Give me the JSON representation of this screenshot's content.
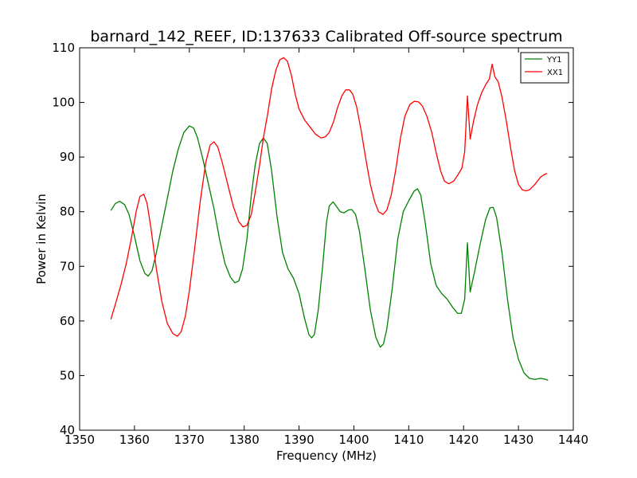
{
  "chart_data": {
    "type": "line",
    "title": "barnard_142_REEF, ID:137633 Calibrated Off-source spectrum",
    "xlabel": "Frequency (MHz)",
    "ylabel": "Power in Kelvin",
    "xlim": [
      1350,
      1440
    ],
    "ylim": [
      40,
      110
    ],
    "xticks": [
      1350,
      1360,
      1370,
      1380,
      1390,
      1400,
      1410,
      1420,
      1430,
      1440
    ],
    "yticks": [
      40,
      50,
      60,
      70,
      80,
      90,
      100,
      110
    ],
    "grid": false,
    "legend_position": "top-right",
    "series": [
      {
        "name": "YY1",
        "color": "#008000",
        "points": [
          [
            1355.7,
            80.2
          ],
          [
            1356.5,
            81.5
          ],
          [
            1357.3,
            81.9
          ],
          [
            1358.2,
            81.3
          ],
          [
            1359.0,
            79.5
          ],
          [
            1360.0,
            75.5
          ],
          [
            1361.0,
            71.0
          ],
          [
            1361.9,
            68.7
          ],
          [
            1362.5,
            68.2
          ],
          [
            1363.2,
            69.2
          ],
          [
            1364.0,
            72.5
          ],
          [
            1365.0,
            77.5
          ],
          [
            1366.0,
            82.5
          ],
          [
            1367.0,
            87.5
          ],
          [
            1368.0,
            91.5
          ],
          [
            1369.0,
            94.5
          ],
          [
            1370.0,
            95.7
          ],
          [
            1370.8,
            95.3
          ],
          [
            1371.5,
            93.5
          ],
          [
            1372.5,
            89.5
          ],
          [
            1373.5,
            85.0
          ],
          [
            1374.5,
            80.5
          ],
          [
            1375.5,
            75.0
          ],
          [
            1376.5,
            70.5
          ],
          [
            1377.5,
            68.0
          ],
          [
            1378.3,
            67.0
          ],
          [
            1379.0,
            67.3
          ],
          [
            1379.7,
            69.5
          ],
          [
            1380.5,
            75.0
          ],
          [
            1381.3,
            83.0
          ],
          [
            1382.0,
            88.5
          ],
          [
            1382.8,
            92.5
          ],
          [
            1383.5,
            93.5
          ],
          [
            1384.2,
            92.5
          ],
          [
            1385.0,
            87.5
          ],
          [
            1386.0,
            79.0
          ],
          [
            1387.0,
            72.5
          ],
          [
            1388.0,
            69.5
          ],
          [
            1389.0,
            67.8
          ],
          [
            1390.0,
            65.0
          ],
          [
            1391.0,
            60.5
          ],
          [
            1391.8,
            57.5
          ],
          [
            1392.3,
            56.9
          ],
          [
            1392.8,
            57.5
          ],
          [
            1393.5,
            62.0
          ],
          [
            1394.3,
            70.0
          ],
          [
            1395.0,
            78.0
          ],
          [
            1395.5,
            81.0
          ],
          [
            1396.2,
            81.8
          ],
          [
            1396.8,
            81.0
          ],
          [
            1397.5,
            80.0
          ],
          [
            1398.2,
            79.8
          ],
          [
            1399.0,
            80.3
          ],
          [
            1399.6,
            80.4
          ],
          [
            1400.3,
            79.5
          ],
          [
            1401.0,
            76.5
          ],
          [
            1402.0,
            69.5
          ],
          [
            1403.0,
            62.0
          ],
          [
            1404.0,
            57.0
          ],
          [
            1404.8,
            55.2
          ],
          [
            1405.4,
            55.8
          ],
          [
            1406.0,
            58.5
          ],
          [
            1407.0,
            66.0
          ],
          [
            1408.0,
            75.0
          ],
          [
            1409.0,
            80.0
          ],
          [
            1410.0,
            82.0
          ],
          [
            1411.0,
            83.8
          ],
          [
            1411.6,
            84.2
          ],
          [
            1412.2,
            83.0
          ],
          [
            1413.0,
            78.0
          ],
          [
            1414.0,
            70.5
          ],
          [
            1415.0,
            66.5
          ],
          [
            1416.0,
            65.0
          ],
          [
            1417.0,
            64.0
          ],
          [
            1418.0,
            62.5
          ],
          [
            1418.9,
            61.4
          ],
          [
            1419.6,
            61.4
          ],
          [
            1420.2,
            64.0
          ],
          [
            1420.7,
            74.3
          ],
          [
            1421.2,
            65.3
          ],
          [
            1422.0,
            69.0
          ],
          [
            1423.0,
            74.0
          ],
          [
            1424.0,
            78.5
          ],
          [
            1424.8,
            80.7
          ],
          [
            1425.4,
            80.8
          ],
          [
            1426.0,
            79.0
          ],
          [
            1427.0,
            72.5
          ],
          [
            1428.0,
            64.0
          ],
          [
            1429.0,
            57.0
          ],
          [
            1430.0,
            53.0
          ],
          [
            1431.0,
            50.5
          ],
          [
            1432.0,
            49.5
          ],
          [
            1433.0,
            49.3
          ],
          [
            1434.0,
            49.5
          ],
          [
            1435.0,
            49.3
          ],
          [
            1435.4,
            49.1
          ]
        ]
      },
      {
        "name": "XX1",
        "color": "#ff0000",
        "points": [
          [
            1355.7,
            60.3
          ],
          [
            1356.5,
            63.0
          ],
          [
            1357.5,
            66.5
          ],
          [
            1358.5,
            70.5
          ],
          [
            1359.5,
            75.5
          ],
          [
            1360.3,
            80.0
          ],
          [
            1361.0,
            82.8
          ],
          [
            1361.7,
            83.2
          ],
          [
            1362.3,
            81.5
          ],
          [
            1363.0,
            77.0
          ],
          [
            1364.0,
            69.5
          ],
          [
            1365.0,
            63.5
          ],
          [
            1366.0,
            59.5
          ],
          [
            1367.0,
            57.7
          ],
          [
            1367.8,
            57.2
          ],
          [
            1368.5,
            58.0
          ],
          [
            1369.3,
            61.0
          ],
          [
            1370.0,
            65.5
          ],
          [
            1371.0,
            73.5
          ],
          [
            1372.0,
            82.0
          ],
          [
            1373.0,
            89.0
          ],
          [
            1373.8,
            92.2
          ],
          [
            1374.5,
            92.8
          ],
          [
            1375.2,
            91.8
          ],
          [
            1376.0,
            89.0
          ],
          [
            1377.0,
            85.0
          ],
          [
            1378.0,
            81.0
          ],
          [
            1379.0,
            78.2
          ],
          [
            1379.8,
            77.2
          ],
          [
            1380.5,
            77.5
          ],
          [
            1381.3,
            79.5
          ],
          [
            1382.0,
            83.5
          ],
          [
            1382.8,
            88.5
          ],
          [
            1383.5,
            93.5
          ],
          [
            1384.3,
            98.0
          ],
          [
            1385.0,
            102.5
          ],
          [
            1385.8,
            106.0
          ],
          [
            1386.5,
            107.8
          ],
          [
            1387.2,
            108.2
          ],
          [
            1387.9,
            107.5
          ],
          [
            1388.6,
            105.0
          ],
          [
            1389.3,
            101.5
          ],
          [
            1390.0,
            98.8
          ],
          [
            1391.0,
            96.8
          ],
          [
            1392.0,
            95.5
          ],
          [
            1393.0,
            94.2
          ],
          [
            1394.0,
            93.5
          ],
          [
            1394.8,
            93.7
          ],
          [
            1395.5,
            94.5
          ],
          [
            1396.3,
            96.5
          ],
          [
            1397.0,
            99.0
          ],
          [
            1397.8,
            101.2
          ],
          [
            1398.5,
            102.3
          ],
          [
            1399.2,
            102.3
          ],
          [
            1399.8,
            101.5
          ],
          [
            1400.5,
            99.2
          ],
          [
            1401.3,
            95.0
          ],
          [
            1402.2,
            89.5
          ],
          [
            1403.0,
            85.0
          ],
          [
            1403.8,
            81.8
          ],
          [
            1404.5,
            80.0
          ],
          [
            1405.3,
            79.5
          ],
          [
            1406.0,
            80.3
          ],
          [
            1406.8,
            83.0
          ],
          [
            1407.6,
            87.5
          ],
          [
            1408.5,
            93.5
          ],
          [
            1409.3,
            97.5
          ],
          [
            1410.2,
            99.6
          ],
          [
            1411.0,
            100.2
          ],
          [
            1411.8,
            100.1
          ],
          [
            1412.5,
            99.3
          ],
          [
            1413.3,
            97.5
          ],
          [
            1414.2,
            94.5
          ],
          [
            1415.0,
            90.8
          ],
          [
            1415.8,
            87.5
          ],
          [
            1416.5,
            85.6
          ],
          [
            1417.3,
            85.1
          ],
          [
            1418.2,
            85.6
          ],
          [
            1419.0,
            86.8
          ],
          [
            1419.7,
            88.0
          ],
          [
            1420.2,
            91.0
          ],
          [
            1420.7,
            101.2
          ],
          [
            1421.2,
            93.3
          ],
          [
            1421.8,
            96.5
          ],
          [
            1422.5,
            99.5
          ],
          [
            1423.3,
            101.8
          ],
          [
            1424.0,
            103.2
          ],
          [
            1424.7,
            104.3
          ],
          [
            1425.2,
            107.0
          ],
          [
            1425.7,
            104.7
          ],
          [
            1426.3,
            103.8
          ],
          [
            1427.0,
            101.0
          ],
          [
            1427.8,
            96.5
          ],
          [
            1428.6,
            91.5
          ],
          [
            1429.3,
            87.5
          ],
          [
            1430.0,
            85.0
          ],
          [
            1430.7,
            84.0
          ],
          [
            1431.4,
            83.8
          ],
          [
            1432.0,
            84.0
          ],
          [
            1433.0,
            85.0
          ],
          [
            1434.0,
            86.3
          ],
          [
            1434.7,
            86.8
          ],
          [
            1435.2,
            87.0
          ]
        ]
      }
    ]
  }
}
